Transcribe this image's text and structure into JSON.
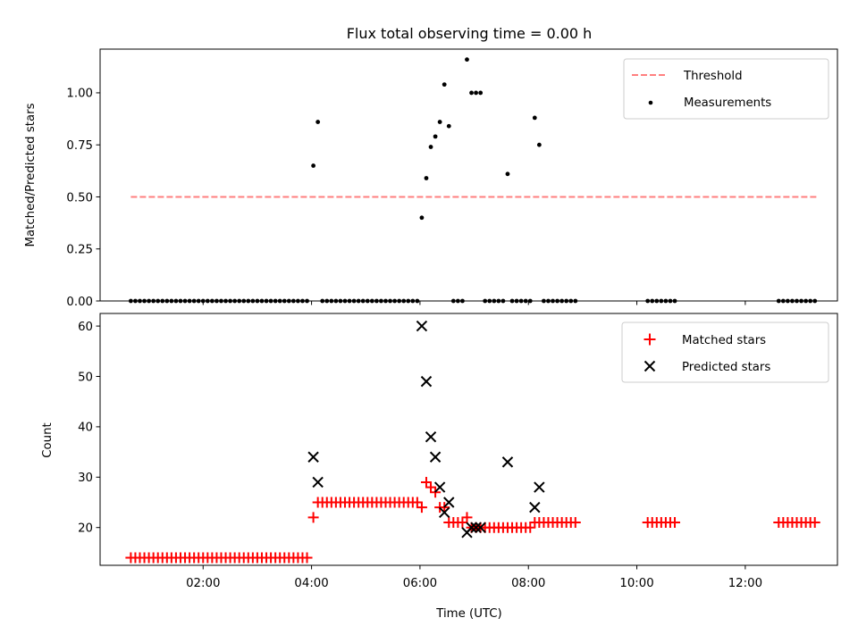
{
  "chart_data": [
    {
      "type": "scatter",
      "title": "Flux total observing time = 0.00 h",
      "xlabel": "",
      "ylabel": "Matched/Predicted stars",
      "ylim": [
        0,
        1.21
      ],
      "yticks": [
        "0.00",
        "0.25",
        "0.50",
        "0.75",
        "1.00"
      ],
      "ytick_values": [
        0,
        0.25,
        0.5,
        0.75,
        1.0
      ],
      "xlim_hours": [
        0.1,
        13.7
      ],
      "legend_position": "top-right",
      "threshold": {
        "name": "Threshold",
        "value": 0.5,
        "x_start": "00:40",
        "x_end": "13:20",
        "color": "#ff7f7f"
      },
      "series": [
        {
          "name": "Measurements",
          "color": "#000000",
          "points": [
            [
              "00:40",
              0
            ],
            [
              "00:45",
              0
            ],
            [
              "00:50",
              0
            ],
            [
              "00:55",
              0
            ],
            [
              "01:00",
              0
            ],
            [
              "01:05",
              0
            ],
            [
              "01:10",
              0
            ],
            [
              "01:15",
              0
            ],
            [
              "01:20",
              0
            ],
            [
              "01:25",
              0
            ],
            [
              "01:30",
              0
            ],
            [
              "01:35",
              0
            ],
            [
              "01:40",
              0
            ],
            [
              "01:45",
              0
            ],
            [
              "01:50",
              0
            ],
            [
              "01:55",
              0
            ],
            [
              "02:00",
              0
            ],
            [
              "02:05",
              0
            ],
            [
              "02:10",
              0
            ],
            [
              "02:15",
              0
            ],
            [
              "02:20",
              0
            ],
            [
              "02:25",
              0
            ],
            [
              "02:30",
              0
            ],
            [
              "02:35",
              0
            ],
            [
              "02:40",
              0
            ],
            [
              "02:45",
              0
            ],
            [
              "02:50",
              0
            ],
            [
              "02:55",
              0
            ],
            [
              "03:00",
              0
            ],
            [
              "03:05",
              0
            ],
            [
              "03:10",
              0
            ],
            [
              "03:15",
              0
            ],
            [
              "03:20",
              0
            ],
            [
              "03:25",
              0
            ],
            [
              "03:30",
              0
            ],
            [
              "03:35",
              0
            ],
            [
              "03:40",
              0
            ],
            [
              "03:45",
              0
            ],
            [
              "03:50",
              0
            ],
            [
              "03:55",
              0
            ],
            [
              "04:02",
              0.65
            ],
            [
              "04:07",
              0.86
            ],
            [
              "04:12",
              0
            ],
            [
              "04:17",
              0
            ],
            [
              "04:22",
              0
            ],
            [
              "04:27",
              0
            ],
            [
              "04:32",
              0
            ],
            [
              "04:37",
              0
            ],
            [
              "04:42",
              0
            ],
            [
              "04:47",
              0
            ],
            [
              "04:52",
              0
            ],
            [
              "04:57",
              0
            ],
            [
              "05:02",
              0
            ],
            [
              "05:07",
              0
            ],
            [
              "05:12",
              0
            ],
            [
              "05:17",
              0
            ],
            [
              "05:22",
              0
            ],
            [
              "05:27",
              0
            ],
            [
              "05:32",
              0
            ],
            [
              "05:37",
              0
            ],
            [
              "05:42",
              0
            ],
            [
              "05:47",
              0
            ],
            [
              "05:52",
              0
            ],
            [
              "05:57",
              0
            ],
            [
              "06:02",
              0.4
            ],
            [
              "06:07",
              0.59
            ],
            [
              "06:12",
              0.74
            ],
            [
              "06:17",
              0.79
            ],
            [
              "06:22",
              0.86
            ],
            [
              "06:27",
              1.04
            ],
            [
              "06:32",
              0.84
            ],
            [
              "06:37",
              0
            ],
            [
              "06:42",
              0
            ],
            [
              "06:47",
              0
            ],
            [
              "06:52",
              1.16
            ],
            [
              "06:57",
              1.0
            ],
            [
              "07:02",
              1.0
            ],
            [
              "07:07",
              1.0
            ],
            [
              "07:12",
              0
            ],
            [
              "07:17",
              0
            ],
            [
              "07:22",
              0
            ],
            [
              "07:27",
              0
            ],
            [
              "07:32",
              0
            ],
            [
              "07:37",
              0.61
            ],
            [
              "07:42",
              0
            ],
            [
              "07:47",
              0
            ],
            [
              "07:52",
              0
            ],
            [
              "07:57",
              0
            ],
            [
              "08:02",
              0
            ],
            [
              "08:07",
              0.88
            ],
            [
              "08:12",
              0.75
            ],
            [
              "08:17",
              0
            ],
            [
              "08:22",
              0
            ],
            [
              "08:27",
              0
            ],
            [
              "08:32",
              0
            ],
            [
              "08:37",
              0
            ],
            [
              "08:42",
              0
            ],
            [
              "08:47",
              0
            ],
            [
              "08:52",
              0
            ],
            [
              "10:12",
              0
            ],
            [
              "10:17",
              0
            ],
            [
              "10:22",
              0
            ],
            [
              "10:27",
              0
            ],
            [
              "10:32",
              0
            ],
            [
              "10:37",
              0
            ],
            [
              "10:42",
              0
            ],
            [
              "12:37",
              0
            ],
            [
              "12:42",
              0
            ],
            [
              "12:47",
              0
            ],
            [
              "12:52",
              0
            ],
            [
              "12:57",
              0
            ],
            [
              "13:02",
              0
            ],
            [
              "13:07",
              0
            ],
            [
              "13:12",
              0
            ],
            [
              "13:17",
              0
            ]
          ]
        }
      ]
    },
    {
      "type": "scatter",
      "title": "",
      "xlabel": "Time (UTC)",
      "ylabel": "Count",
      "ylim": [
        12.5,
        62.5
      ],
      "yticks": [
        "20",
        "30",
        "40",
        "50",
        "60"
      ],
      "ytick_values": [
        20,
        30,
        40,
        50,
        60
      ],
      "xticks": [
        "02:00",
        "04:00",
        "06:00",
        "08:00",
        "10:00",
        "12:00"
      ],
      "xlim_hours": [
        0.1,
        13.7
      ],
      "legend_position": "top-right",
      "series": [
        {
          "name": "Matched stars",
          "color": "#ff0000",
          "marker": "plus",
          "points": [
            [
              "00:40",
              14
            ],
            [
              "00:45",
              14
            ],
            [
              "00:50",
              14
            ],
            [
              "00:55",
              14
            ],
            [
              "01:00",
              14
            ],
            [
              "01:05",
              14
            ],
            [
              "01:10",
              14
            ],
            [
              "01:15",
              14
            ],
            [
              "01:20",
              14
            ],
            [
              "01:25",
              14
            ],
            [
              "01:30",
              14
            ],
            [
              "01:35",
              14
            ],
            [
              "01:40",
              14
            ],
            [
              "01:45",
              14
            ],
            [
              "01:50",
              14
            ],
            [
              "01:55",
              14
            ],
            [
              "02:00",
              14
            ],
            [
              "02:05",
              14
            ],
            [
              "02:10",
              14
            ],
            [
              "02:15",
              14
            ],
            [
              "02:20",
              14
            ],
            [
              "02:25",
              14
            ],
            [
              "02:30",
              14
            ],
            [
              "02:35",
              14
            ],
            [
              "02:40",
              14
            ],
            [
              "02:45",
              14
            ],
            [
              "02:50",
              14
            ],
            [
              "02:55",
              14
            ],
            [
              "03:00",
              14
            ],
            [
              "03:05",
              14
            ],
            [
              "03:10",
              14
            ],
            [
              "03:15",
              14
            ],
            [
              "03:20",
              14
            ],
            [
              "03:25",
              14
            ],
            [
              "03:30",
              14
            ],
            [
              "03:35",
              14
            ],
            [
              "03:40",
              14
            ],
            [
              "03:45",
              14
            ],
            [
              "03:50",
              14
            ],
            [
              "03:55",
              14
            ],
            [
              "04:02",
              22
            ],
            [
              "04:07",
              25
            ],
            [
              "04:12",
              25
            ],
            [
              "04:17",
              25
            ],
            [
              "04:22",
              25
            ],
            [
              "04:27",
              25
            ],
            [
              "04:32",
              25
            ],
            [
              "04:37",
              25
            ],
            [
              "04:42",
              25
            ],
            [
              "04:47",
              25
            ],
            [
              "04:52",
              25
            ],
            [
              "04:57",
              25
            ],
            [
              "05:02",
              25
            ],
            [
              "05:07",
              25
            ],
            [
              "05:12",
              25
            ],
            [
              "05:17",
              25
            ],
            [
              "05:22",
              25
            ],
            [
              "05:27",
              25
            ],
            [
              "05:32",
              25
            ],
            [
              "05:37",
              25
            ],
            [
              "05:42",
              25
            ],
            [
              "05:47",
              25
            ],
            [
              "05:52",
              25
            ],
            [
              "05:57",
              25
            ],
            [
              "06:02",
              24
            ],
            [
              "06:07",
              29
            ],
            [
              "06:12",
              28
            ],
            [
              "06:17",
              27
            ],
            [
              "06:22",
              24
            ],
            [
              "06:27",
              24
            ],
            [
              "06:32",
              21
            ],
            [
              "06:37",
              21
            ],
            [
              "06:42",
              21
            ],
            [
              "06:47",
              21
            ],
            [
              "06:52",
              22
            ],
            [
              "06:57",
              20
            ],
            [
              "07:02",
              20
            ],
            [
              "07:07",
              20
            ],
            [
              "07:12",
              20
            ],
            [
              "07:17",
              20
            ],
            [
              "07:22",
              20
            ],
            [
              "07:27",
              20
            ],
            [
              "07:32",
              20
            ],
            [
              "07:37",
              20
            ],
            [
              "07:42",
              20
            ],
            [
              "07:47",
              20
            ],
            [
              "07:52",
              20
            ],
            [
              "07:57",
              20
            ],
            [
              "08:02",
              20
            ],
            [
              "08:07",
              21
            ],
            [
              "08:12",
              21
            ],
            [
              "08:17",
              21
            ],
            [
              "08:22",
              21
            ],
            [
              "08:27",
              21
            ],
            [
              "08:32",
              21
            ],
            [
              "08:37",
              21
            ],
            [
              "08:42",
              21
            ],
            [
              "08:47",
              21
            ],
            [
              "08:52",
              21
            ],
            [
              "10:12",
              21
            ],
            [
              "10:17",
              21
            ],
            [
              "10:22",
              21
            ],
            [
              "10:27",
              21
            ],
            [
              "10:32",
              21
            ],
            [
              "10:37",
              21
            ],
            [
              "10:42",
              21
            ],
            [
              "12:37",
              21
            ],
            [
              "12:42",
              21
            ],
            [
              "12:47",
              21
            ],
            [
              "12:52",
              21
            ],
            [
              "12:57",
              21
            ],
            [
              "13:02",
              21
            ],
            [
              "13:07",
              21
            ],
            [
              "13:12",
              21
            ],
            [
              "13:17",
              21
            ]
          ]
        },
        {
          "name": "Predicted stars",
          "color": "#000000",
          "marker": "x",
          "points": [
            [
              "04:02",
              34
            ],
            [
              "04:07",
              29
            ],
            [
              "06:02",
              60
            ],
            [
              "06:07",
              49
            ],
            [
              "06:12",
              38
            ],
            [
              "06:17",
              34
            ],
            [
              "06:22",
              28
            ],
            [
              "06:27",
              23
            ],
            [
              "06:32",
              25
            ],
            [
              "06:52",
              19
            ],
            [
              "06:57",
              20
            ],
            [
              "07:02",
              20
            ],
            [
              "07:07",
              20
            ],
            [
              "07:37",
              33
            ],
            [
              "08:07",
              24
            ],
            [
              "08:12",
              28
            ]
          ]
        }
      ]
    }
  ]
}
